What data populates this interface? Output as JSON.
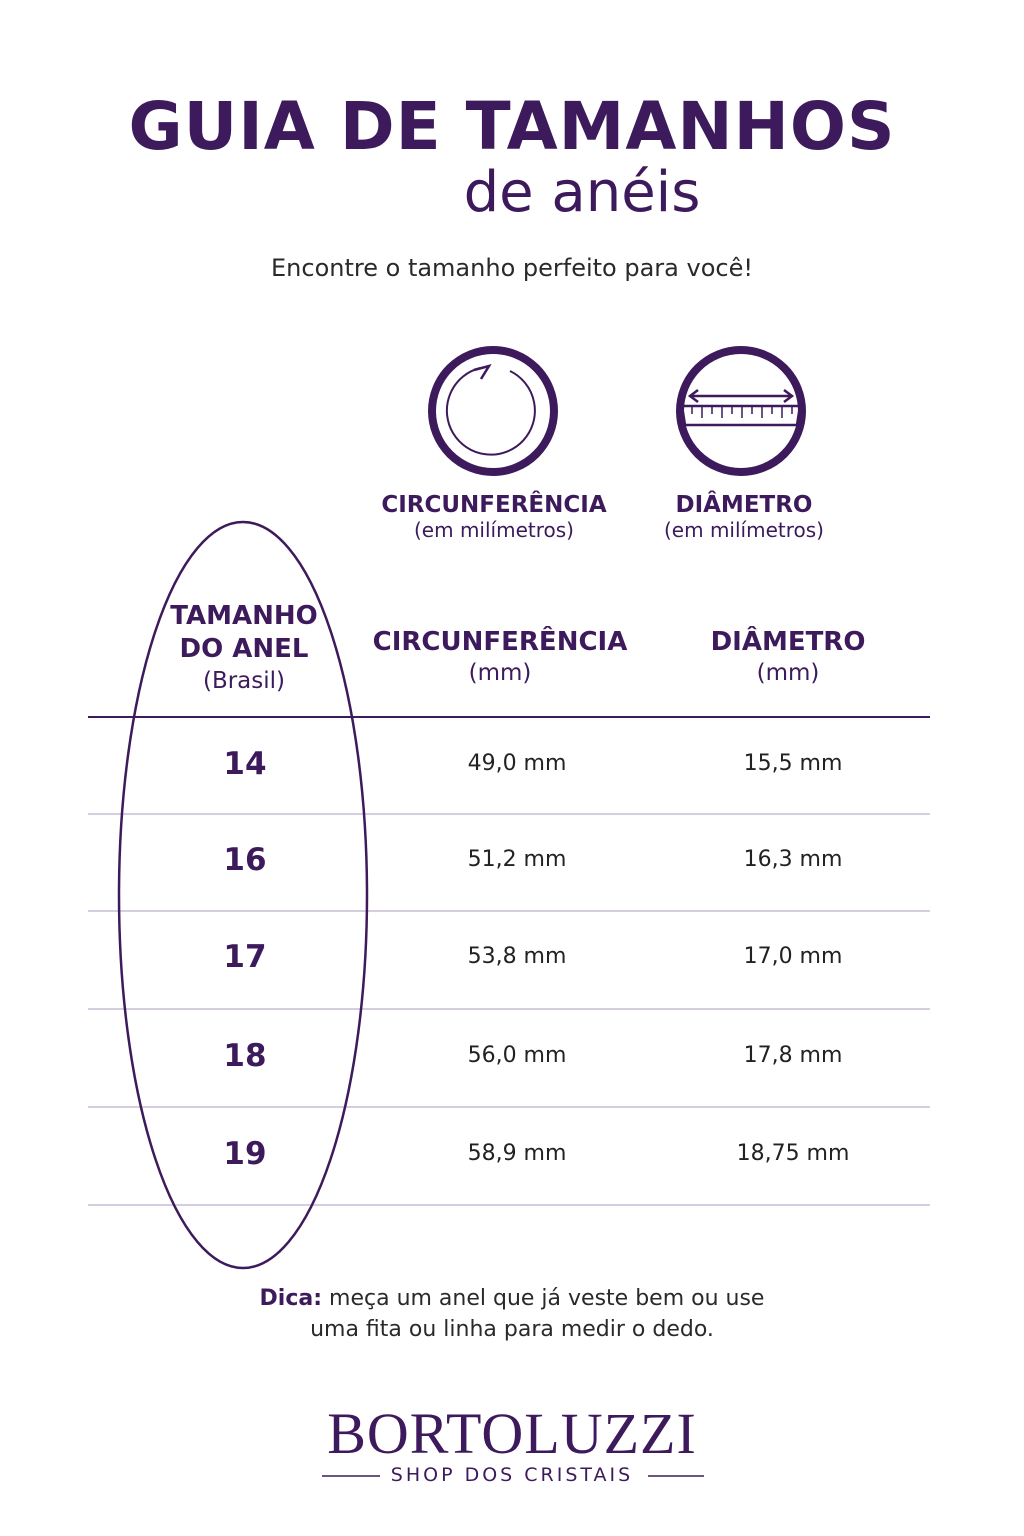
{
  "header": {
    "title": "GUIA DE TAMANHOS",
    "subtitle": "de anéis",
    "tagline": "Encontre o tamanho perfeito para você!"
  },
  "icons": [
    {
      "label": "CIRCUNFERÊNCIA",
      "unit": "(em milímetros)"
    },
    {
      "label": "DIÂMETRO",
      "unit": "(em milímetros)"
    }
  ],
  "table": {
    "header": [
      {
        "lines": [
          "TAMANHO",
          "DO ANEL"
        ],
        "unit": "(Brasil)"
      },
      {
        "lines": [
          "CIRCUNFERÊNCIA"
        ],
        "unit": "(mm)"
      },
      {
        "lines": [
          "DIÂMETRO"
        ],
        "unit": "(mm)"
      }
    ],
    "rows": [
      [
        "14",
        "49,0 mm",
        "15,5 mm"
      ],
      [
        "16",
        "51,2 mm",
        "16,3 mm"
      ],
      [
        "17",
        "53,8 mm",
        "17,0 mm"
      ],
      [
        "18",
        "56,0 mm",
        "17,8 mm"
      ],
      [
        "19",
        "58,9 mm",
        "18,75 mm"
      ]
    ]
  },
  "tip": {
    "label": "Dica:",
    "line1": "meça um anel que já veste bem ou use",
    "line2": "uma fita ou linha para medir o dedo."
  },
  "brand": {
    "name": "BORTOLUZZI",
    "tagline": "SHOP DOS CRISTAIS"
  }
}
